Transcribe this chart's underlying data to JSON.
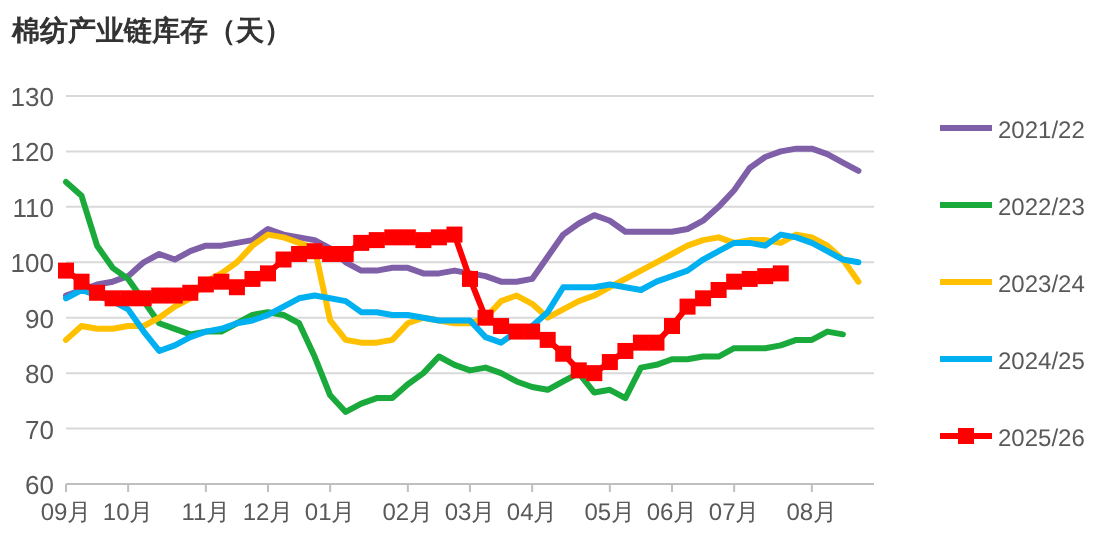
{
  "chart_data": {
    "type": "line",
    "title": "棉纺产业链库存（天）",
    "categories": [
      "09月",
      null,
      null,
      null,
      "10月",
      null,
      null,
      null,
      null,
      "11月",
      null,
      null,
      null,
      "12月",
      null,
      null,
      null,
      "01月",
      null,
      null,
      null,
      null,
      "02月",
      null,
      null,
      null,
      "03月",
      null,
      null,
      null,
      "04月",
      null,
      null,
      null,
      null,
      "05月",
      null,
      null,
      null,
      "06月",
      null,
      null,
      null,
      "07月",
      null,
      null,
      null,
      null,
      "08月",
      null,
      null,
      null
    ],
    "ylim": [
      60,
      130
    ],
    "yticks": [
      60,
      70,
      80,
      90,
      100,
      110,
      120,
      130
    ],
    "grid": "y",
    "legend": "right",
    "line_style": "solid",
    "series": [
      {
        "name": "2021/22",
        "color": "#7f5fa8",
        "marker": "none",
        "values": [
          94,
          95,
          96,
          96.5,
          97.5,
          100,
          101.5,
          100.5,
          102,
          103,
          103,
          103.5,
          104,
          106,
          105,
          104.5,
          104,
          102.5,
          100,
          98.5,
          98.5,
          99,
          99,
          98,
          98,
          98.5,
          98,
          97.5,
          96.5,
          96.5,
          97,
          101,
          105,
          107,
          108.5,
          107.5,
          105.5,
          105.5,
          105.5,
          105.5,
          106,
          107.5,
          110,
          113,
          117,
          119,
          120,
          120.5,
          120.5,
          119.5,
          118,
          116.5
        ]
      },
      {
        "name": "2022/23",
        "color": "#1aaa3c",
        "marker": "none",
        "values": [
          114.5,
          112,
          103,
          99,
          97,
          93,
          89,
          88,
          87,
          87.5,
          87.5,
          89,
          90.5,
          91,
          90.5,
          89,
          83,
          76,
          73,
          74.5,
          75.5,
          75.5,
          78,
          80,
          83,
          81.5,
          80.5,
          81,
          80,
          78.5,
          77.5,
          77,
          78.5,
          80,
          76.5,
          77,
          75.5,
          81,
          81.5,
          82.5,
          82.5,
          83,
          83,
          84.5,
          84.5,
          84.5,
          85,
          86,
          86,
          87.5,
          87,
          null
        ]
      },
      {
        "name": "2023/24",
        "color": "#ffc000",
        "marker": "none",
        "values": [
          86,
          88.5,
          88,
          88,
          88.5,
          88.5,
          90,
          92,
          93.5,
          96.5,
          98,
          100,
          103,
          105,
          104.5,
          103.5,
          102.5,
          89.5,
          86,
          85.5,
          85.5,
          86,
          89,
          90,
          89.5,
          89,
          89,
          90,
          93,
          94,
          92.5,
          90,
          91.5,
          93,
          94,
          95.5,
          97,
          98.5,
          100,
          101.5,
          103,
          104,
          104.5,
          103.5,
          104,
          104,
          103.5,
          105,
          104.5,
          103,
          100.5,
          96.5
        ]
      },
      {
        "name": "2024/25",
        "color": "#00b0f0",
        "marker": "none",
        "values": [
          93.5,
          95,
          94,
          93,
          91.5,
          87.5,
          84,
          85,
          86.5,
          87.5,
          88,
          89,
          89.5,
          90.5,
          92,
          93.5,
          94,
          93.5,
          93,
          91,
          91,
          90.5,
          90.5,
          90,
          89.5,
          89.5,
          89.5,
          86.5,
          85.5,
          87.5,
          88.5,
          91,
          95.5,
          95.5,
          95.5,
          96,
          95.5,
          95,
          96.5,
          97.5,
          98.5,
          100.5,
          102,
          103.5,
          103.5,
          103,
          105,
          104.5,
          103.5,
          102,
          100.5,
          100
        ]
      },
      {
        "name": "2025/26",
        "color": "#ff0000",
        "marker": "square",
        "values": [
          98.5,
          96.5,
          94.5,
          93.5,
          93.5,
          93.5,
          94,
          94,
          94.5,
          96,
          96.5,
          95.5,
          97,
          98,
          100.5,
          101.5,
          102,
          101.5,
          101.5,
          103.5,
          104,
          104.5,
          104.5,
          104,
          104.5,
          105,
          97,
          90,
          88.5,
          87.5,
          87.5,
          86,
          83.5,
          80.5,
          80,
          82,
          84,
          85.5,
          85.5,
          88.5,
          92,
          93.5,
          95,
          96.5,
          97,
          97.5,
          98,
          null,
          null,
          null,
          null,
          null
        ]
      }
    ]
  }
}
